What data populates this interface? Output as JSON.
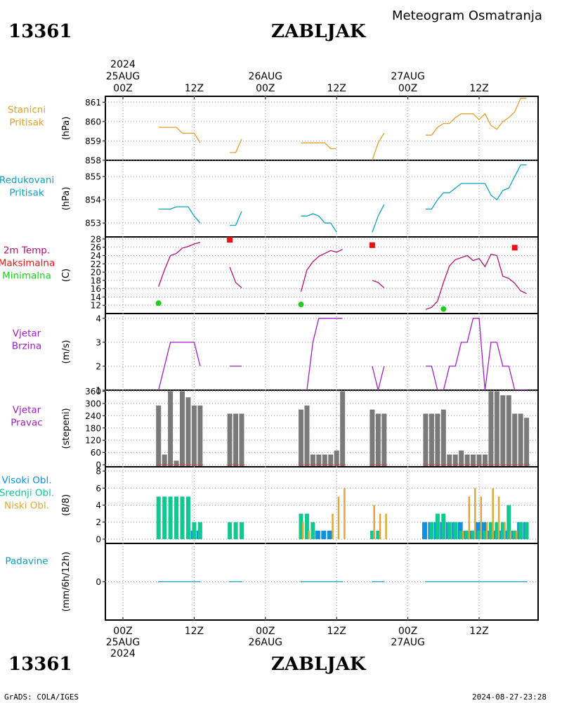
{
  "header": {
    "station_id": "13361",
    "station_name": "ZABLJAK",
    "product": "Meteogram Osmatranja",
    "credit": "GrADS: COLA/IGES",
    "generated": "2024-08-27-23:28"
  },
  "colors": {
    "pressure": "#e0a030",
    "reduced_pressure": "#10a0c0",
    "temperature": "#b0106e",
    "max_temp": "#ee1010",
    "min_temp": "#20cc20",
    "wind": "#a020c0",
    "wind_dir_bar": "#7a7a7a",
    "high_cloud": "#1090e0",
    "mid_cloud": "#10c890",
    "low_cloud": "#e0a838",
    "precip": "#10a0c0",
    "grid": "#9a9a9a"
  },
  "time_axis": {
    "start_hour": 0,
    "end_hour": 72,
    "top_labels": [
      {
        "hour": 0,
        "lines": [
          "2024",
          "25AUG",
          "00Z"
        ]
      },
      {
        "hour": 12,
        "lines": [
          "12Z"
        ]
      },
      {
        "hour": 24,
        "lines": [
          "26AUG",
          "00Z"
        ]
      },
      {
        "hour": 36,
        "lines": [
          "12Z"
        ]
      },
      {
        "hour": 48,
        "lines": [
          "27AUG",
          "00Z"
        ]
      },
      {
        "hour": 60,
        "lines": [
          "12Z"
        ]
      }
    ],
    "bottom_labels": [
      {
        "hour": 0,
        "lines": [
          "00Z",
          "25AUG",
          "2024"
        ]
      },
      {
        "hour": 12,
        "lines": [
          "12Z"
        ]
      },
      {
        "hour": 24,
        "lines": [
          "00Z",
          "26AUG"
        ]
      },
      {
        "hour": 36,
        "lines": [
          "12Z"
        ]
      },
      {
        "hour": 48,
        "lines": [
          "00Z",
          "27AUG"
        ]
      },
      {
        "hour": 60,
        "lines": [
          "12Z"
        ]
      }
    ]
  },
  "chart_data": [
    {
      "type": "line",
      "id": "station-pressure",
      "labels": [
        "Stanicni",
        "Pritisak"
      ],
      "ylabel": "(hPa)",
      "ylim": [
        858,
        861.3
      ],
      "yticks": [
        858,
        859,
        860,
        861
      ],
      "grid": true,
      "series": [
        {
          "x": [
            6,
            8,
            9,
            10,
            11,
            12,
            13,
            null,
            18,
            19,
            20,
            null,
            30,
            31,
            32,
            33,
            34,
            35,
            36,
            null,
            42,
            43,
            44,
            null,
            51,
            52,
            53,
            54,
            55,
            56,
            57,
            58,
            59,
            60,
            61,
            62,
            63,
            64,
            65,
            66,
            67,
            68
          ],
          "y": [
            859.7,
            859.7,
            859.7,
            859.4,
            859.4,
            859.4,
            858.9,
            null,
            858.4,
            858.4,
            859.1,
            null,
            858.9,
            858.9,
            858.9,
            858.9,
            858.9,
            858.6,
            858.6,
            null,
            858.0,
            858.9,
            859.4,
            null,
            859.3,
            859.3,
            859.7,
            859.9,
            859.9,
            860.2,
            860.4,
            860.4,
            860.4,
            860.1,
            860.4,
            859.8,
            859.6,
            860.0,
            860.2,
            860.5,
            861.2,
            861.2
          ]
        }
      ]
    },
    {
      "type": "line",
      "id": "reduced-pressure",
      "labels": [
        "Redukovani",
        "Pritisak"
      ],
      "ylabel": "(hPa)",
      "ylim": [
        852.4,
        855.7
      ],
      "yticks": [
        853,
        854,
        855
      ],
      "grid": true,
      "series": [
        {
          "x": [
            6,
            8,
            9,
            10,
            11,
            12,
            13,
            null,
            18,
            19,
            20,
            null,
            30,
            31,
            32,
            33,
            34,
            35,
            36,
            null,
            42,
            43,
            44,
            null,
            51,
            52,
            53,
            54,
            55,
            56,
            57,
            58,
            59,
            60,
            61,
            62,
            63,
            64,
            65,
            66,
            67,
            68
          ],
          "y": [
            853.6,
            853.6,
            853.7,
            853.7,
            853.7,
            853.3,
            853.0,
            null,
            852.9,
            852.9,
            853.5,
            null,
            853.3,
            853.3,
            853.4,
            853.3,
            853.0,
            853.0,
            852.6,
            null,
            852.6,
            853.3,
            853.8,
            null,
            853.6,
            853.6,
            854.0,
            854.3,
            854.3,
            854.5,
            854.7,
            854.7,
            854.7,
            854.7,
            854.7,
            854.2,
            854.0,
            854.4,
            854.5,
            855.0,
            855.5,
            855.5
          ]
        }
      ]
    },
    {
      "type": "line",
      "id": "temperature",
      "labels": [
        "2m Temp.",
        "Maksimalna",
        "Minimalna"
      ],
      "ylabel": "(C)",
      "ylim": [
        10,
        28.5
      ],
      "yticks": [
        12,
        14,
        16,
        18,
        20,
        22,
        24,
        26,
        28
      ],
      "grid": true,
      "series": [
        {
          "name": "2m Temp.",
          "x": [
            6,
            7,
            8,
            9,
            10,
            11,
            12,
            13,
            null,
            18,
            19,
            20,
            null,
            30,
            31,
            32,
            33,
            34,
            35,
            36,
            37,
            null,
            42,
            43,
            44,
            null,
            51,
            52,
            53,
            54,
            55,
            56,
            57,
            58,
            59,
            60,
            61,
            62,
            63,
            64,
            65,
            66,
            67,
            68
          ],
          "y": [
            16.5,
            20.5,
            24.0,
            24.5,
            25.8,
            26.2,
            26.8,
            27.2,
            null,
            21.2,
            17.5,
            16.2,
            null,
            15.3,
            20.5,
            22.5,
            23.8,
            24.5,
            25.2,
            24.8,
            25.5,
            null,
            18.0,
            17.5,
            16.2,
            null,
            11.0,
            11.5,
            13.0,
            17.5,
            21.5,
            23.0,
            23.5,
            24.0,
            22.8,
            23.3,
            21.3,
            24.3,
            24.0,
            19.0,
            18.5,
            17.3,
            15.5,
            14.8
          ]
        }
      ],
      "max_points": {
        "name": "Maksimalna",
        "x": [
          18,
          42,
          66
        ],
        "y": [
          27.8,
          26.5,
          25.9
        ]
      },
      "min_points": {
        "name": "Minimalna",
        "x": [
          6,
          30,
          54
        ],
        "y": [
          12.5,
          12.2,
          11.1
        ]
      }
    },
    {
      "type": "line",
      "id": "wind-speed",
      "labels": [
        "Vjetar",
        "Brzina"
      ],
      "ylabel": "(m/s)",
      "ylim": [
        1,
        4.2
      ],
      "yticks": [
        1,
        2,
        3,
        4
      ],
      "grid": true,
      "series": [
        {
          "x": [
            6,
            8,
            9,
            10,
            11,
            12,
            13,
            null,
            18,
            19,
            20,
            null,
            30,
            31,
            32,
            33,
            34,
            35,
            36,
            37,
            null,
            42,
            43,
            44,
            null,
            51,
            52,
            53,
            54,
            55,
            56,
            57,
            58,
            59,
            60,
            61,
            62,
            63,
            64,
            65,
            66,
            67,
            68
          ],
          "y": [
            1,
            3,
            3,
            3,
            3,
            3,
            2,
            null,
            2,
            2,
            2,
            null,
            1,
            1,
            3,
            4,
            4,
            4,
            4,
            4,
            null,
            2,
            1,
            2,
            null,
            2,
            2,
            1,
            1,
            2,
            2,
            3,
            3,
            4,
            4,
            1,
            3,
            3,
            2,
            2,
            1,
            1,
            1
          ]
        }
      ]
    },
    {
      "type": "bar",
      "id": "wind-direction",
      "labels": [
        "Vjetar",
        "Pravac"
      ],
      "ylabel": "(stepeni)",
      "ylim": [
        -10,
        365
      ],
      "yticks": [
        0,
        60,
        120,
        180,
        240,
        300,
        360
      ],
      "grid": true,
      "series": [
        {
          "x": [
            6,
            7,
            8,
            9,
            10,
            11,
            12,
            13,
            18,
            19,
            20,
            30,
            31,
            32,
            33,
            34,
            35,
            36,
            37,
            42,
            43,
            44,
            51,
            52,
            53,
            54,
            55,
            56,
            57,
            58,
            59,
            60,
            61,
            62,
            63,
            64,
            65,
            66,
            67,
            68
          ],
          "y": [
            290,
            50,
            360,
            20,
            360,
            330,
            290,
            290,
            250,
            250,
            250,
            270,
            290,
            50,
            50,
            50,
            50,
            70,
            360,
            270,
            250,
            250,
            250,
            250,
            250,
            270,
            50,
            50,
            70,
            50,
            50,
            50,
            50,
            360,
            360,
            340,
            340,
            250,
            250,
            230
          ]
        }
      ]
    },
    {
      "type": "bar",
      "id": "clouds",
      "labels": [
        "Visoki Obl.",
        "Srednji Obl.",
        "Niski Obl."
      ],
      "ylabel": "(8/8)",
      "ylim": [
        -0.5,
        8.5
      ],
      "yticks": [
        0,
        2,
        4,
        6,
        8
      ],
      "grid": true,
      "series": [
        {
          "name": "Visoki Obl.",
          "x": [
            12,
            13,
            30,
            33,
            34,
            35,
            51,
            52,
            53,
            54,
            55,
            56,
            57,
            58,
            59,
            60,
            61,
            62,
            63,
            64,
            65,
            66,
            67,
            68
          ],
          "y": [
            1,
            1,
            0,
            1,
            1,
            1,
            2,
            2,
            2,
            2,
            2,
            2,
            2,
            1,
            1,
            2,
            2,
            1,
            1,
            1,
            1,
            1,
            2,
            2
          ]
        },
        {
          "name": "Srednji Obl.",
          "x": [
            6,
            7,
            8,
            9,
            10,
            11,
            12,
            13,
            18,
            19,
            20,
            30,
            31,
            32,
            42,
            43,
            52,
            53,
            54,
            55,
            56,
            57,
            58,
            59,
            60,
            61,
            62,
            63,
            64,
            65,
            66,
            67,
            68
          ],
          "y": [
            5,
            5,
            5,
            5,
            5,
            5,
            2,
            2,
            2,
            2,
            2,
            3,
            3,
            2,
            1,
            1,
            2,
            3,
            3,
            2,
            2,
            1,
            1,
            1,
            1,
            1,
            2,
            2,
            2,
            4,
            1,
            2,
            2
          ]
        },
        {
          "name": "Niski Obl.",
          "x": [
            30,
            31,
            35,
            36,
            37,
            42,
            43,
            44,
            57,
            58,
            59,
            60,
            61,
            62,
            63,
            64,
            65,
            66
          ],
          "y": [
            2,
            1,
            3,
            5,
            6,
            4,
            3,
            3,
            1,
            5,
            6,
            5,
            2,
            6,
            5,
            2,
            1,
            1
          ]
        }
      ]
    },
    {
      "type": "line",
      "id": "precipitation",
      "labels": [
        "Padavine"
      ],
      "ylabel": "(mm/6h/12h)",
      "ylim": [
        -1,
        1
      ],
      "yticks": [
        0
      ],
      "grid": true,
      "series": [
        {
          "x": [
            6,
            13,
            null,
            18,
            20,
            null,
            30,
            37,
            null,
            42,
            44,
            null,
            51,
            68
          ],
          "y": [
            0,
            0,
            null,
            0,
            0,
            null,
            0,
            0,
            null,
            0,
            0,
            null,
            0,
            0
          ]
        }
      ]
    }
  ]
}
